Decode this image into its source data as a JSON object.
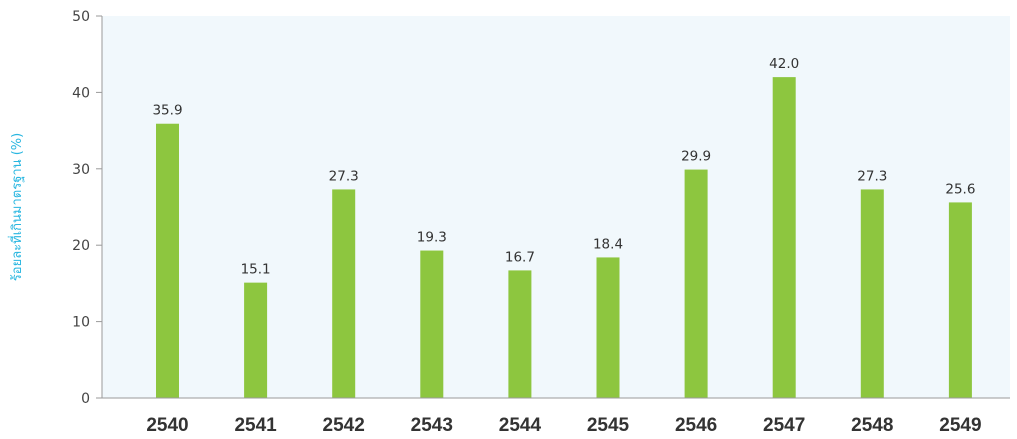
{
  "chart_data": {
    "type": "bar",
    "categories": [
      "2540",
      "2541",
      "2542",
      "2543",
      "2544",
      "2545",
      "2546",
      "2547",
      "2548",
      "2549"
    ],
    "values": [
      35.9,
      15.1,
      27.3,
      19.3,
      16.7,
      18.4,
      29.9,
      42.0,
      27.3,
      25.6
    ],
    "value_labels": [
      "35.9",
      "15.1",
      "27.3",
      "19.3",
      "16.7",
      "18.4",
      "29.9",
      "42.0",
      "27.3",
      "25.6"
    ],
    "title": "",
    "xlabel": "",
    "ylabel": "ร้อยละที่เกินมาตรฐาน (%)",
    "ylim": [
      0,
      50
    ],
    "yticks": [
      "0",
      "10",
      "20",
      "30",
      "40",
      "50"
    ],
    "grid": false,
    "colors": {
      "bar": "#8dc63f",
      "plot_background": "#f1f8fc",
      "axis": "#9a9a9a",
      "ylabel": "#29b6e0"
    }
  }
}
